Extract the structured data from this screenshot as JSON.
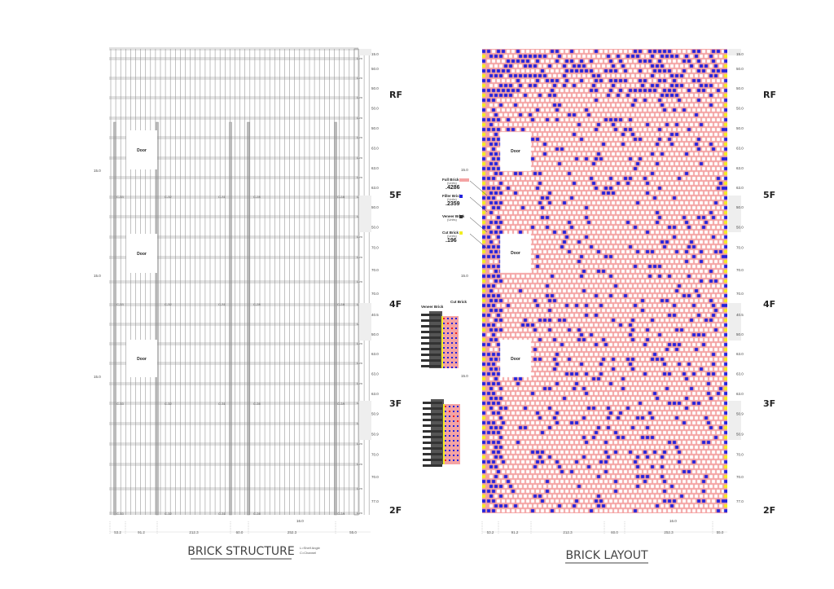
{
  "structure": {
    "caption": "BRICK STRUCTURE",
    "legend_shelf": "L=Shelf Angle",
    "legend_channel": "C=Channel",
    "level_label": "L-m",
    "door_label": "Door",
    "channel_labels": [
      "C-33",
      "C-32",
      "C-31",
      "C-28",
      "C-2A"
    ],
    "side_dim": "15.0"
  },
  "layout": {
    "caption": "BRICK LAYOUT",
    "door_label": "Door",
    "side_dim": "15.0",
    "legend": [
      {
        "name": "Full Brick",
        "unit": "(Units)",
        "value": ".4286",
        "color": "#f4a3a3"
      },
      {
        "name": "Filler Brick",
        "unit": "(Units)",
        "value": ".2359",
        "color": "#2222dd"
      },
      {
        "name": "Veneer Brick",
        "unit": "(Units)",
        "value": "",
        "color": "#333333"
      },
      {
        "name": "Cut Brick",
        "unit": "(Units)",
        "value": ".196",
        "color": "#f2ee22"
      }
    ],
    "inset_labels": {
      "veneer": "Veneer Brick",
      "cut": "Cut Brick"
    }
  },
  "floors": [
    "RF",
    "5F",
    "4F",
    "3F",
    "2F"
  ],
  "vertical_dims": [
    "15.0",
    "50.0",
    "50.0",
    "50.0",
    "50.0",
    "63.0",
    "63.0",
    "63.0",
    "50.0",
    "50.0",
    "70.0",
    "70.0",
    "70.0",
    "40.5",
    "50.0",
    "63.0",
    "63.0",
    "63.0",
    "50.9",
    "50.9",
    "70.0",
    "70.0",
    "77.0"
  ],
  "horizontal_dims": [
    "53.2",
    "91.2",
    "212.3",
    "60.0",
    "252.3",
    "55.0"
  ],
  "offset_dim": "16.0",
  "colors": {
    "pink": "#f4a3a3",
    "blue": "#2222dd",
    "yellow": "#f2ee22",
    "line": "#888888"
  }
}
